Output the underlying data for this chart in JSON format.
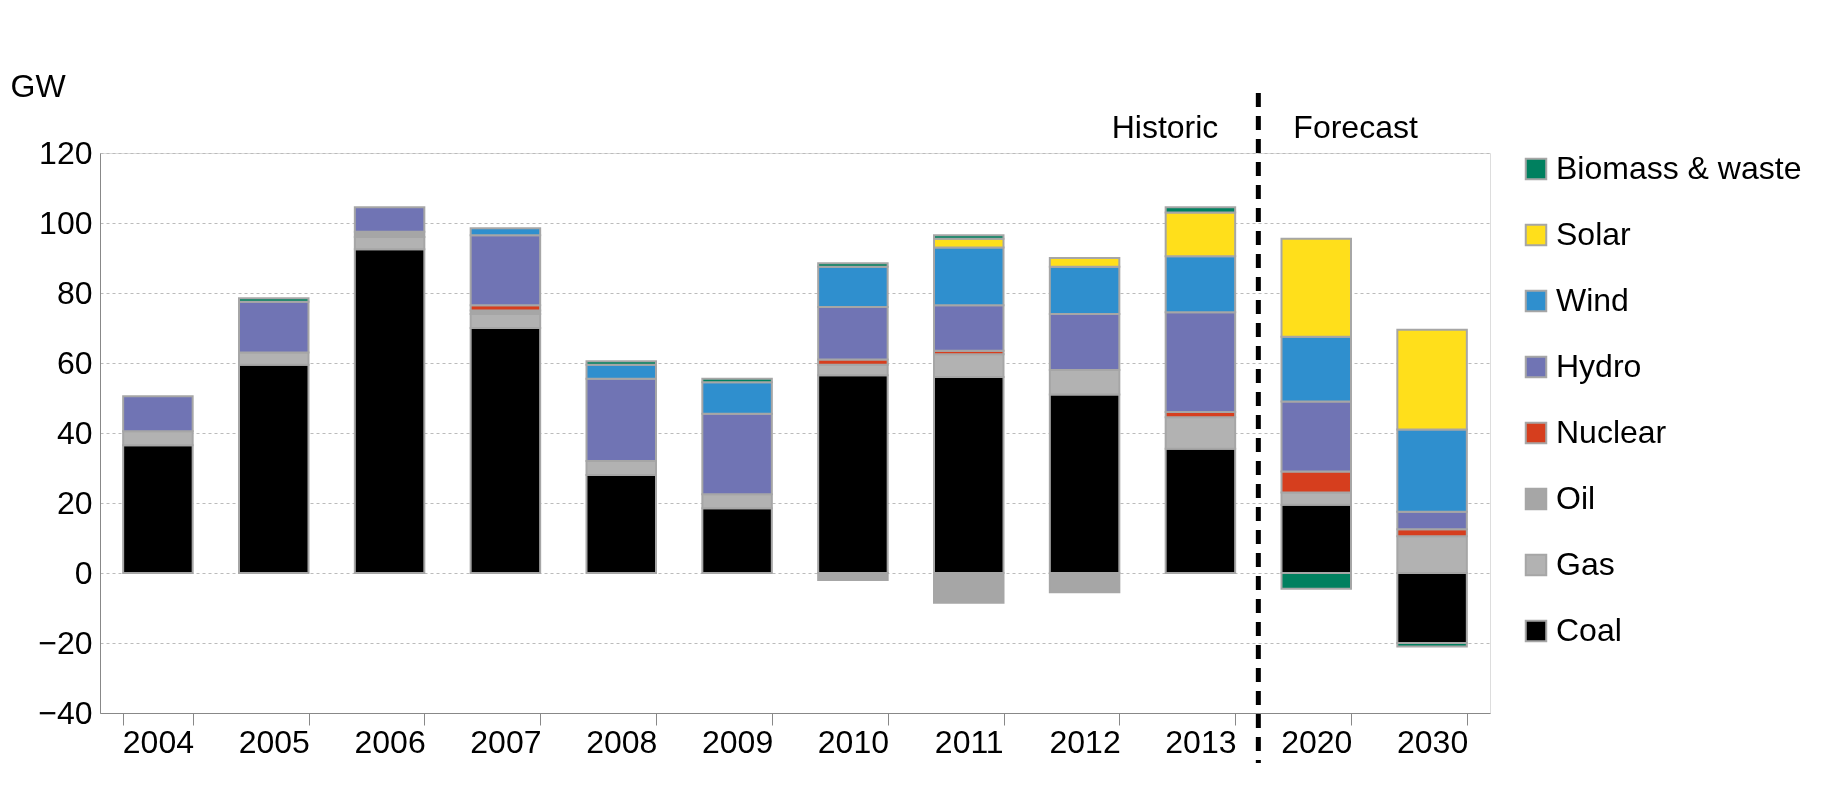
{
  "chart_data": {
    "type": "bar",
    "stacked": true,
    "ylabel": "GW",
    "categories": [
      "2004",
      "2005",
      "2006",
      "2007",
      "2008",
      "2009",
      "2010",
      "2011",
      "2012",
      "2013",
      "2020",
      "2030"
    ],
    "series": [
      {
        "name": "Coal",
        "color": "#000000",
        "values": [
          36.5,
          59.5,
          92.5,
          70,
          28,
          18.5,
          56.5,
          56,
          51,
          35.5,
          19.5,
          -20
        ]
      },
      {
        "name": "Gas",
        "color": "#b2b2b2",
        "values": [
          4,
          3.5,
          3.5,
          4,
          4,
          4,
          3,
          6.5,
          7,
          9,
          3.5,
          10.5
        ]
      },
      {
        "name": "Oil",
        "color": "#a6a6a6",
        "values": [
          null,
          null,
          1.5,
          1,
          null,
          null,
          -2,
          -8.5,
          -5.5,
          null,
          null,
          null
        ]
      },
      {
        "name": "Nuclear",
        "color": "#d63e1e",
        "values": [
          null,
          null,
          null,
          1.5,
          null,
          null,
          1.5,
          1,
          null,
          1.5,
          6,
          2
        ]
      },
      {
        "name": "Hydro",
        "color": "#7074b4",
        "values": [
          10,
          14.5,
          7,
          20,
          23.5,
          23,
          15,
          13,
          16,
          28.5,
          20,
          5
        ]
      },
      {
        "name": "Wind",
        "color": "#2f8fce",
        "values": [
          null,
          null,
          null,
          2,
          4,
          9,
          11.5,
          16.5,
          13.5,
          16,
          18.5,
          23.5
        ]
      },
      {
        "name": "Solar",
        "color": "#ffdf1b",
        "values": [
          null,
          null,
          null,
          null,
          null,
          null,
          null,
          2.5,
          2.5,
          12.5,
          28,
          28.5
        ]
      },
      {
        "name": "Biomass & waste",
        "color": "#00805f",
        "values": [
          null,
          1,
          null,
          null,
          1,
          1,
          1,
          1,
          null,
          1.5,
          -4.5,
          -1
        ]
      }
    ],
    "ylim": [
      -40,
      120
    ],
    "yticks": [
      -40,
      -20,
      0,
      20,
      40,
      60,
      80,
      100,
      120
    ],
    "grid": "y",
    "legend": "right",
    "ref_lines": [
      {
        "axis": "x",
        "value": "2013",
        "line_style": "dashed",
        "color": "#000000"
      }
    ],
    "annotations": [
      "Historic",
      "Forecast"
    ]
  }
}
